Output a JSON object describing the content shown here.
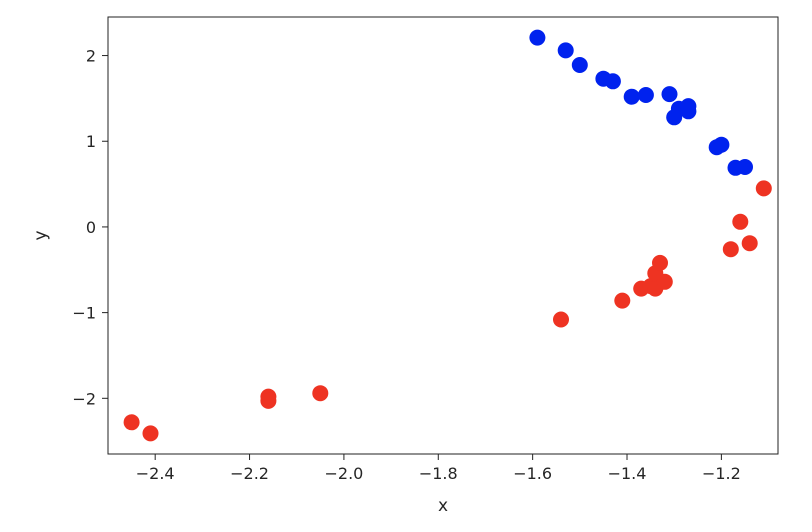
{
  "chart_data": {
    "type": "scatter",
    "title": "",
    "xlabel": "x",
    "ylabel": "y",
    "xlim": [
      -2.5,
      -1.08
    ],
    "ylim": [
      -2.65,
      2.45
    ],
    "xticks": [
      -2.4,
      -2.2,
      -2.0,
      -1.8,
      -1.6,
      -1.4,
      -1.2
    ],
    "xtick_labels": [
      "−2.4",
      "−2.2",
      "−2.0",
      "−1.8",
      "−1.6",
      "−1.4",
      "−1.2"
    ],
    "yticks": [
      -2,
      -1,
      0,
      1,
      2
    ],
    "ytick_labels": [
      "−2",
      "−1",
      "0",
      "1",
      "2"
    ],
    "grid": false,
    "series": [
      {
        "color": "#0022ee",
        "points": [
          [
            -1.59,
            2.21
          ],
          [
            -1.53,
            2.06
          ],
          [
            -1.5,
            1.89
          ],
          [
            -1.45,
            1.73
          ],
          [
            -1.43,
            1.7
          ],
          [
            -1.39,
            1.52
          ],
          [
            -1.36,
            1.54
          ],
          [
            -1.31,
            1.55
          ],
          [
            -1.3,
            1.28
          ],
          [
            -1.29,
            1.38
          ],
          [
            -1.27,
            1.35
          ],
          [
            -1.27,
            1.41
          ],
          [
            -1.21,
            0.93
          ],
          [
            -1.2,
            0.96
          ],
          [
            -1.17,
            0.69
          ],
          [
            -1.15,
            0.7
          ]
        ]
      },
      {
        "color": "#ee3322",
        "points": [
          [
            -2.45,
            -2.28
          ],
          [
            -2.41,
            -2.41
          ],
          [
            -2.16,
            -1.98
          ],
          [
            -2.16,
            -2.03
          ],
          [
            -2.05,
            -1.94
          ],
          [
            -1.54,
            -1.08
          ],
          [
            -1.41,
            -0.86
          ],
          [
            -1.37,
            -0.72
          ],
          [
            -1.35,
            -0.69
          ],
          [
            -1.34,
            -0.72
          ],
          [
            -1.34,
            -0.54
          ],
          [
            -1.33,
            -0.42
          ],
          [
            -1.32,
            -0.64
          ],
          [
            -1.18,
            -0.26
          ],
          [
            -1.16,
            0.06
          ],
          [
            -1.14,
            -0.19
          ],
          [
            -1.11,
            0.45
          ]
        ]
      }
    ]
  }
}
